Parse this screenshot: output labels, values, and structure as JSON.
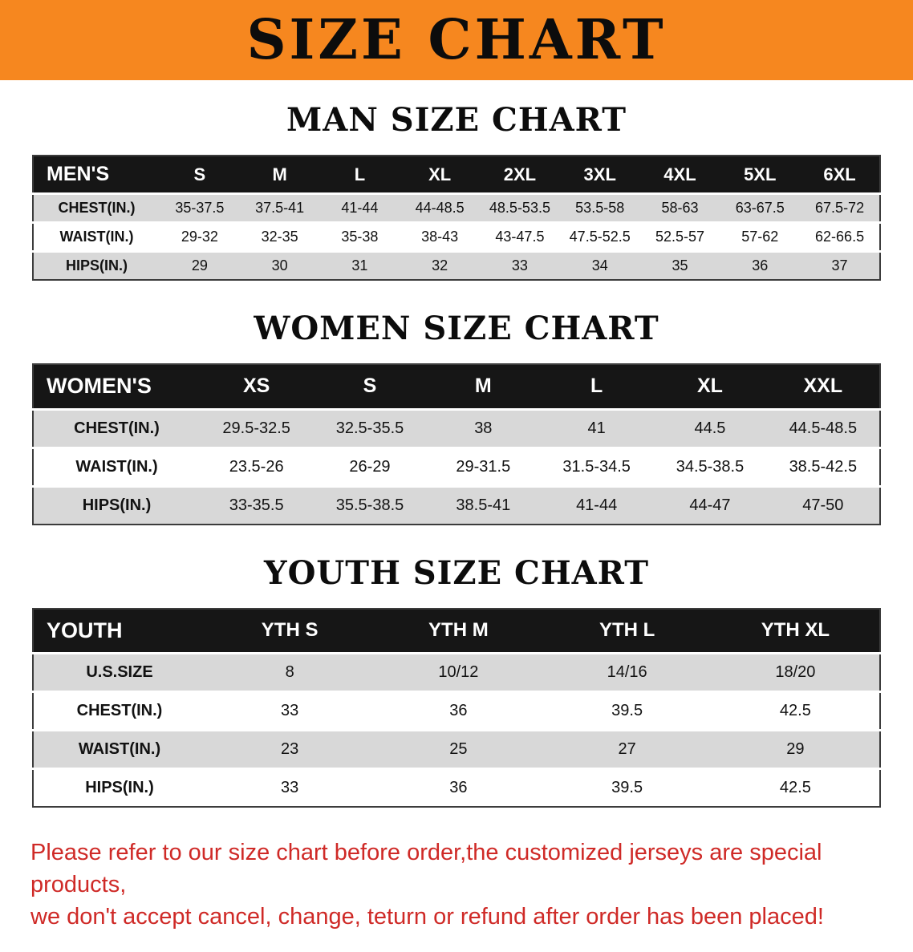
{
  "banner": {
    "title": "SIZE CHART"
  },
  "colors": {
    "banner_bg": "#f6871f",
    "header_bg": "#161616",
    "row_alt": "#d8d8d8",
    "disclaimer_color": "#cf2a27"
  },
  "sections": [
    {
      "id": "men",
      "heading": "MAN SIZE CHART",
      "table": {
        "header": [
          "MEN'S",
          "S",
          "M",
          "L",
          "XL",
          "2XL",
          "3XL",
          "4XL",
          "5XL",
          "6XL"
        ],
        "rows": [
          {
            "label": "CHEST(IN.)",
            "values": [
              "35-37.5",
              "37.5-41",
              "41-44",
              "44-48.5",
              "48.5-53.5",
              "53.5-58",
              "58-63",
              "63-67.5",
              "67.5-72"
            ]
          },
          {
            "label": "WAIST(IN.)",
            "values": [
              "29-32",
              "32-35",
              "35-38",
              "38-43",
              "43-47.5",
              "47.5-52.5",
              "52.5-57",
              "57-62",
              "62-66.5"
            ]
          },
          {
            "label": "HIPS(IN.)",
            "values": [
              "29",
              "30",
              "31",
              "32",
              "33",
              "34",
              "35",
              "36",
              "37"
            ]
          }
        ]
      }
    },
    {
      "id": "women",
      "heading": "WOMEN SIZE CHART",
      "table": {
        "header": [
          "WOMEN'S",
          "XS",
          "S",
          "M",
          "L",
          "XL",
          "XXL"
        ],
        "rows": [
          {
            "label": "CHEST(IN.)",
            "values": [
              "29.5-32.5",
              "32.5-35.5",
              "38",
              "41",
              "44.5",
              "44.5-48.5"
            ]
          },
          {
            "label": "WAIST(IN.)",
            "values": [
              "23.5-26",
              "26-29",
              "29-31.5",
              "31.5-34.5",
              "34.5-38.5",
              "38.5-42.5"
            ]
          },
          {
            "label": "HIPS(IN.)",
            "values": [
              "33-35.5",
              "35.5-38.5",
              "38.5-41",
              "41-44",
              "44-47",
              "47-50"
            ]
          }
        ]
      }
    },
    {
      "id": "youth",
      "heading": "YOUTH SIZE CHART",
      "table": {
        "header": [
          "YOUTH",
          "YTH S",
          "YTH M",
          "YTH L",
          "YTH XL"
        ],
        "rows": [
          {
            "label": "U.S.SIZE",
            "values": [
              "8",
              "10/12",
              "14/16",
              "18/20"
            ]
          },
          {
            "label": "CHEST(IN.)",
            "values": [
              "33",
              "36",
              "39.5",
              "42.5"
            ]
          },
          {
            "label": "WAIST(IN.)",
            "values": [
              "23",
              "25",
              "27",
              "29"
            ]
          },
          {
            "label": "HIPS(IN.)",
            "values": [
              "33",
              "36",
              "39.5",
              "42.5"
            ]
          }
        ]
      }
    }
  ],
  "disclaimer": {
    "lines": [
      "Please refer to our size chart before order,the customized jerseys are special products,",
      "we don't accept cancel, change, teturn or refund after order has been placed!"
    ]
  }
}
